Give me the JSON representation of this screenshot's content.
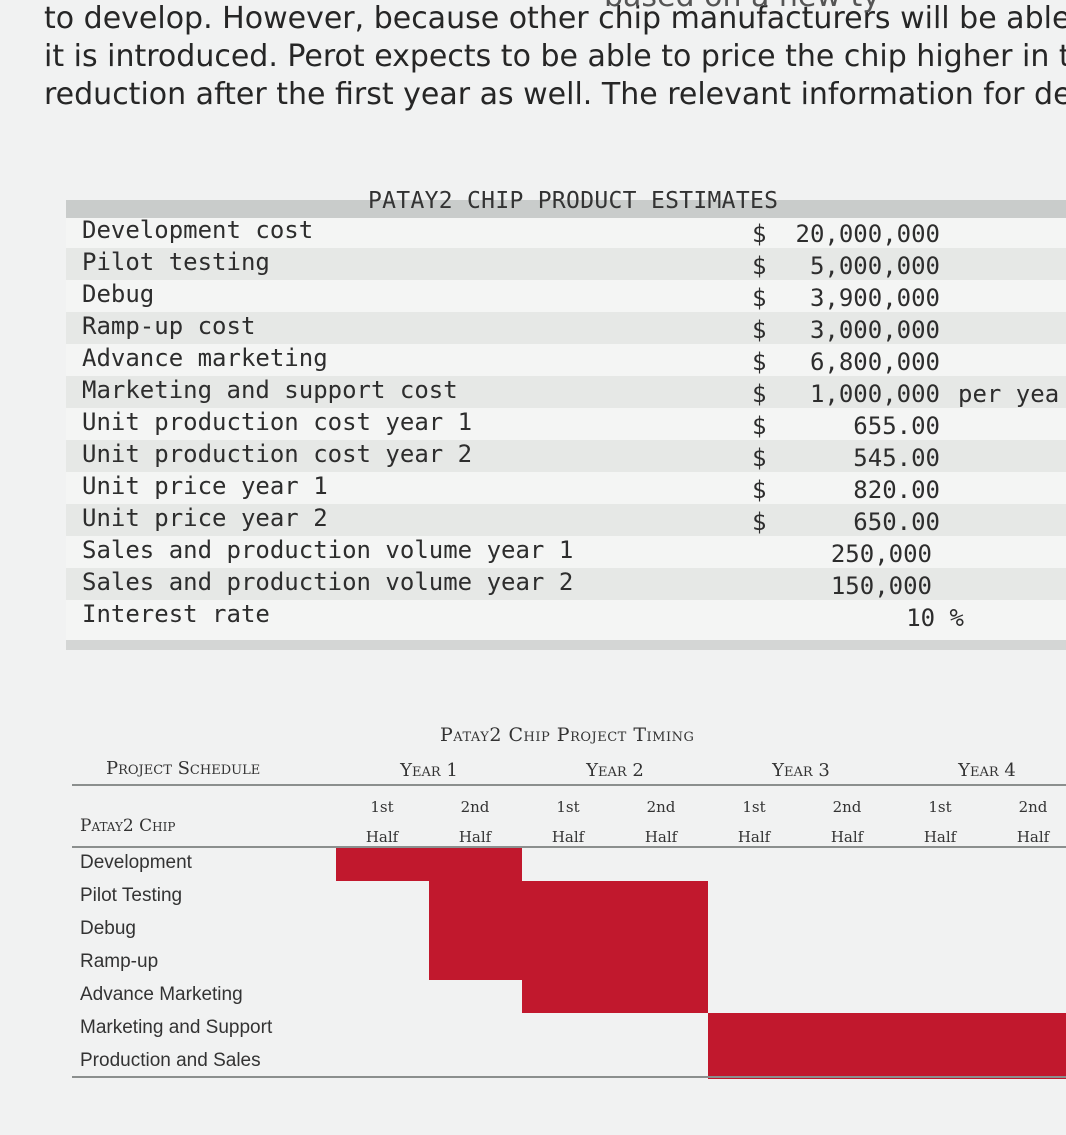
{
  "intro": {
    "top_fragment": "based on a new ty",
    "lines": [
      "to develop. However, because other chip manufacturers will be able",
      "it is introduced. Perot expects to be able to price the chip higher in t",
      "reduction after the first year as well. The relevant information for de"
    ]
  },
  "estimates": {
    "title": "PATAY2 CHIP PRODUCT ESTIMATES",
    "rows": [
      {
        "label": "Development cost",
        "currency": "$",
        "value": "20,000,000",
        "unit": ""
      },
      {
        "label": "Pilot testing",
        "currency": "$",
        "value": "5,000,000",
        "unit": ""
      },
      {
        "label": "Debug",
        "currency": "$",
        "value": "3,900,000",
        "unit": ""
      },
      {
        "label": "Ramp-up cost",
        "currency": "$",
        "value": "3,000,000",
        "unit": ""
      },
      {
        "label": "Advance marketing",
        "currency": "$",
        "value": "6,800,000",
        "unit": ""
      },
      {
        "label": "Marketing and support cost",
        "currency": "$",
        "value": "1,000,000",
        "unit": "per yea"
      },
      {
        "label": "Unit production cost year 1",
        "currency": "$",
        "value": "655.00",
        "unit": ""
      },
      {
        "label": "Unit production cost year 2",
        "currency": "$",
        "value": "545.00",
        "unit": ""
      },
      {
        "label": "Unit price year 1",
        "currency": "$",
        "value": "820.00",
        "unit": ""
      },
      {
        "label": "Unit price year 2",
        "currency": "$",
        "value": "650.00",
        "unit": ""
      },
      {
        "label": "Sales and production volume year 1",
        "currency": "",
        "value": "250,000",
        "unit": ""
      },
      {
        "label": "Sales and production volume year 2",
        "currency": "",
        "value": "150,000",
        "unit": ""
      },
      {
        "label": "Interest rate",
        "currency": "",
        "value": "10 %",
        "unit": ""
      }
    ]
  },
  "timing": {
    "title": "Patay2 Chip Project Timing",
    "schedule_label": "Project Schedule",
    "project_label": "Patay2 Chip",
    "years": [
      "Year 1",
      "Year 2",
      "Year 3",
      "Year 4"
    ],
    "half_top": "1st",
    "half_top_2": "2nd",
    "half_bottom": "Half",
    "tasks": [
      {
        "name": "Development",
        "start_half": 1,
        "end_half": 2
      },
      {
        "name": "Pilot Testing",
        "start_half": 2,
        "end_half": 4
      },
      {
        "name": "Debug",
        "start_half": 2,
        "end_half": 4
      },
      {
        "name": "Ramp-up",
        "start_half": 2,
        "end_half": 4
      },
      {
        "name": "Advance Marketing",
        "start_half": 3,
        "end_half": 4
      },
      {
        "name": "Marketing and Support",
        "start_half": 5,
        "end_half": 8
      },
      {
        "name": "Production and Sales",
        "start_half": 5,
        "end_half": 8
      }
    ],
    "bar_color": "#c1182d"
  }
}
